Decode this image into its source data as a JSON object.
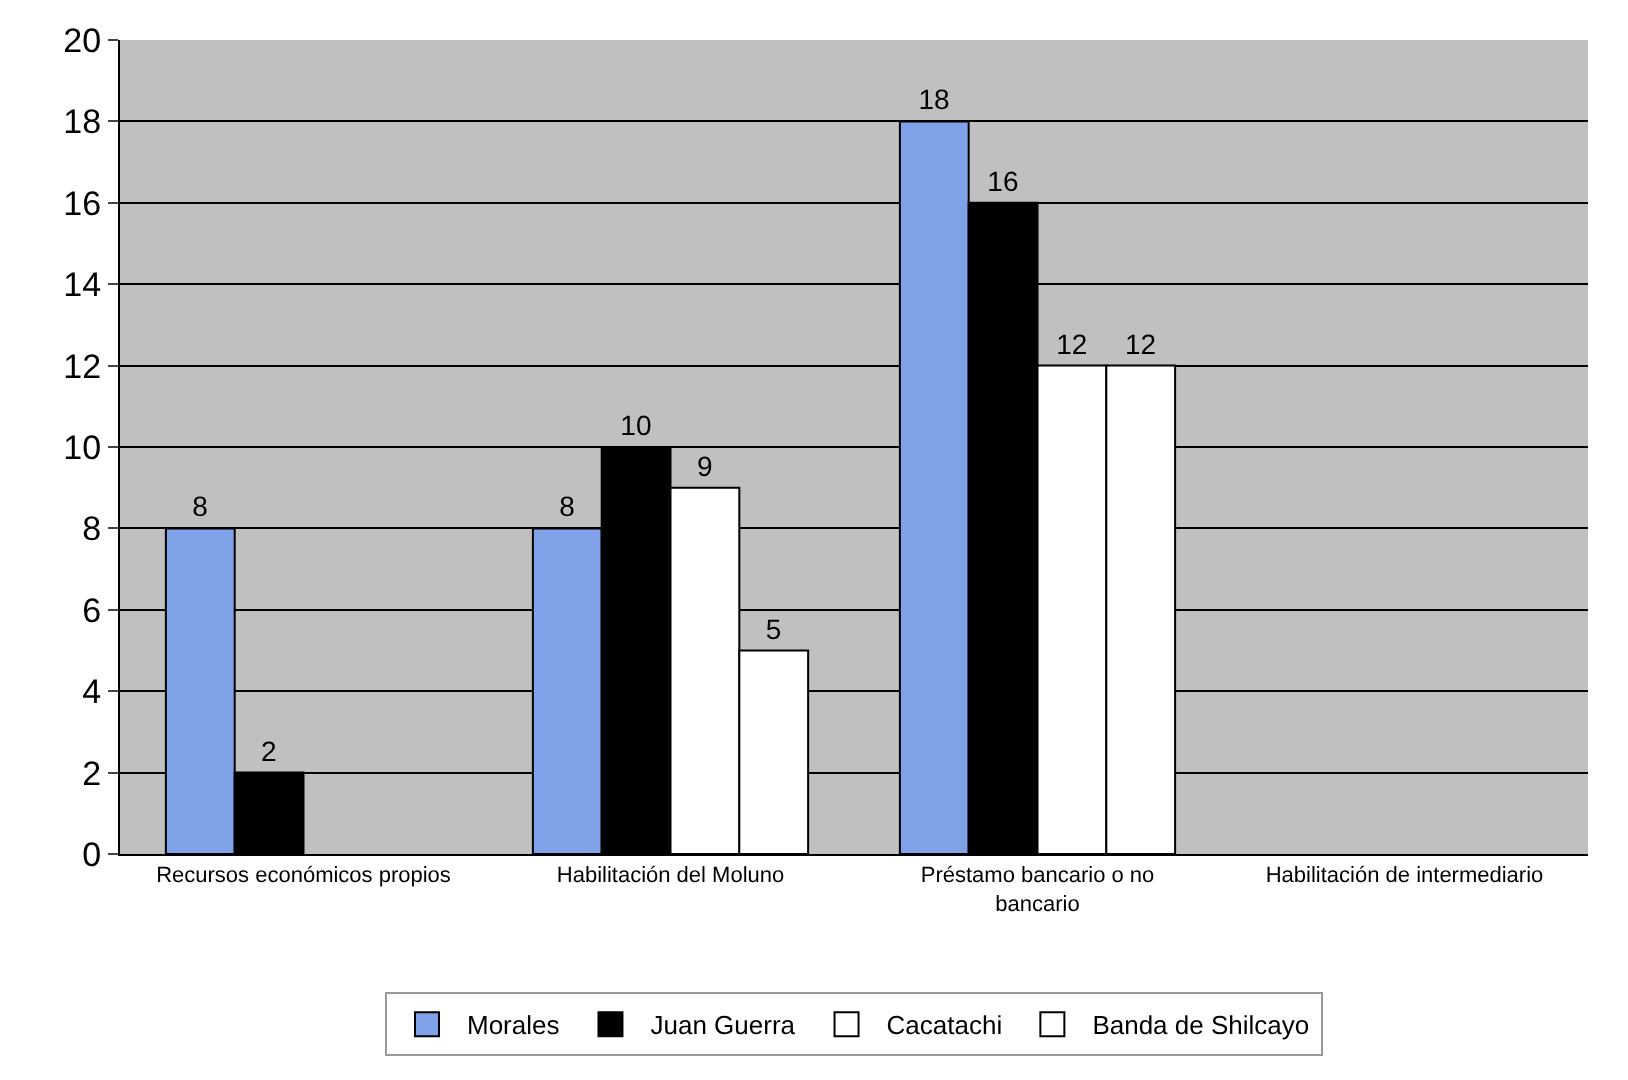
{
  "chart_data": {
    "type": "bar",
    "categories": [
      "Recursos económicos propios",
      "Habilitación del Moluno",
      "Préstamo bancario o no bancario",
      "Habilitación de intermediario"
    ],
    "series": [
      {
        "name": "Morales",
        "color": "#7fa2e8",
        "values": [
          8,
          8,
          18,
          null
        ]
      },
      {
        "name": "Juan Guerra",
        "color": "#000000",
        "values": [
          2,
          10,
          16,
          null
        ]
      },
      {
        "name": "Cacatachi",
        "color": "#ffffff",
        "values": [
          null,
          9,
          12,
          null
        ]
      },
      {
        "name": "Banda de Shilcayo",
        "color": "#ffffff",
        "values": [
          null,
          5,
          12,
          null
        ]
      }
    ],
    "ylim": [
      0,
      20
    ],
    "yticks": [
      0,
      2,
      4,
      6,
      8,
      10,
      12,
      14,
      16,
      18,
      20
    ],
    "grid": "y",
    "legend": "bottom",
    "data_labels": true
  }
}
